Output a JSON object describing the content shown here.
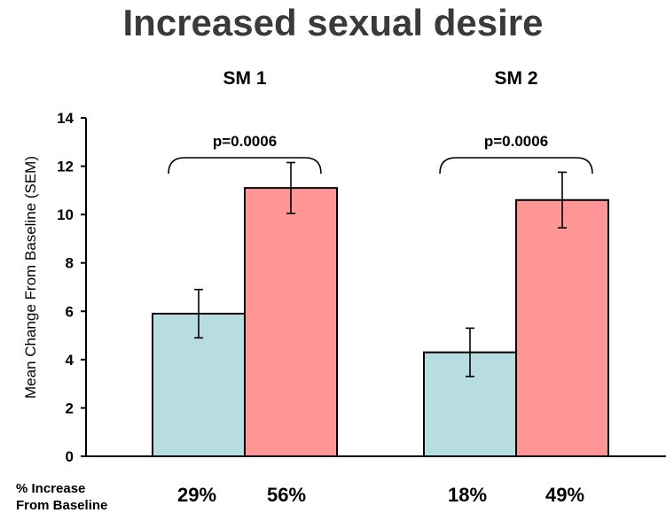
{
  "title": "Increased sexual desire",
  "colors": {
    "teal": "#b7dde0",
    "pink": "#fe9696",
    "stroke": "#000000"
  },
  "footer": {
    "label_line1": "% Increase",
    "label_line2": "From Baseline"
  },
  "chart_data": {
    "type": "bar",
    "title": "Increased sexual desire",
    "ylabel": "Mean Change From Baseline (SEM)",
    "ylim": [
      0,
      14
    ],
    "yticks": [
      0,
      2,
      4,
      6,
      8,
      10,
      12,
      14
    ],
    "groups": [
      {
        "label": "SM 1",
        "pvalue": "p=0.0006",
        "bars": [
          {
            "value": 5.9,
            "err": 1.0,
            "color": "#b7dde0",
            "pct": "29%"
          },
          {
            "value": 11.1,
            "err": 1.05,
            "color": "#fe9696",
            "pct": "56%"
          }
        ]
      },
      {
        "label": "SM 2",
        "pvalue": "p=0.0006",
        "bars": [
          {
            "value": 4.3,
            "err": 1.0,
            "color": "#b7dde0",
            "pct": "18%"
          },
          {
            "value": 10.6,
            "err": 1.15,
            "color": "#fe9696",
            "pct": "49%"
          }
        ]
      }
    ]
  }
}
